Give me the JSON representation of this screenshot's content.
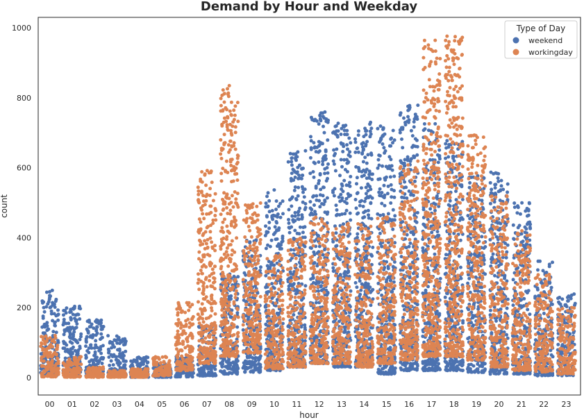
{
  "chart_data": {
    "type": "scatter",
    "title": "Demand by Hour and Weekday",
    "xlabel": "hour",
    "ylabel": "count",
    "categories": [
      "00",
      "01",
      "02",
      "03",
      "04",
      "05",
      "06",
      "07",
      "08",
      "09",
      "10",
      "11",
      "12",
      "13",
      "14",
      "15",
      "16",
      "17",
      "18",
      "19",
      "20",
      "21",
      "22",
      "23"
    ],
    "ylim": [
      -50,
      1030
    ],
    "yticks": [
      0,
      200,
      400,
      600,
      800,
      1000
    ],
    "grid": false,
    "legend": {
      "title": "Type of Day",
      "placement": "top-right"
    },
    "jitter": 0.5,
    "series": [
      {
        "name": "weekend",
        "color": "#4c72b0",
        "summary": [
          {
            "hour": "00",
            "low": 5,
            "high": 250
          },
          {
            "hour": "01",
            "low": 5,
            "high": 205
          },
          {
            "hour": "02",
            "low": 3,
            "high": 165
          },
          {
            "hour": "03",
            "low": 2,
            "high": 120
          },
          {
            "hour": "04",
            "low": 1,
            "high": 60
          },
          {
            "hour": "05",
            "low": 1,
            "high": 40
          },
          {
            "hour": "06",
            "low": 2,
            "high": 60
          },
          {
            "hour": "07",
            "low": 5,
            "high": 150
          },
          {
            "hour": "08",
            "low": 10,
            "high": 300
          },
          {
            "hour": "09",
            "low": 15,
            "high": 400
          },
          {
            "hour": "10",
            "low": 20,
            "high": 540
          },
          {
            "hour": "11",
            "low": 30,
            "high": 650
          },
          {
            "hour": "12",
            "low": 40,
            "high": 760
          },
          {
            "hour": "13",
            "low": 30,
            "high": 730
          },
          {
            "hour": "14",
            "low": 30,
            "high": 730
          },
          {
            "hour": "15",
            "low": 10,
            "high": 720
          },
          {
            "hour": "16",
            "low": 20,
            "high": 780
          },
          {
            "hour": "17",
            "low": 20,
            "high": 730
          },
          {
            "hour": "18",
            "low": 20,
            "high": 680
          },
          {
            "hour": "19",
            "low": 15,
            "high": 580
          },
          {
            "hour": "20",
            "low": 10,
            "high": 590
          },
          {
            "hour": "21",
            "low": 10,
            "high": 500
          },
          {
            "hour": "22",
            "low": 5,
            "high": 340
          },
          {
            "hour": "23",
            "low": 5,
            "high": 240
          }
        ]
      },
      {
        "name": "workingday",
        "color": "#dd8452",
        "summary": [
          {
            "hour": "00",
            "low": 2,
            "high": 120
          },
          {
            "hour": "01",
            "low": 1,
            "high": 60
          },
          {
            "hour": "02",
            "low": 1,
            "high": 30
          },
          {
            "hour": "03",
            "low": 1,
            "high": 20
          },
          {
            "hour": "04",
            "low": 1,
            "high": 25
          },
          {
            "hour": "05",
            "low": 5,
            "high": 60
          },
          {
            "hour": "06",
            "low": 20,
            "high": 220
          },
          {
            "hour": "07",
            "low": 40,
            "high": 600
          },
          {
            "hour": "08",
            "low": 60,
            "high": 840
          },
          {
            "hour": "09",
            "low": 70,
            "high": 500
          },
          {
            "hour": "10",
            "low": 25,
            "high": 350
          },
          {
            "hour": "11",
            "low": 30,
            "high": 400
          },
          {
            "hour": "12",
            "low": 40,
            "high": 460
          },
          {
            "hour": "13",
            "low": 40,
            "high": 440
          },
          {
            "hour": "14",
            "low": 30,
            "high": 440
          },
          {
            "hour": "15",
            "low": 40,
            "high": 460
          },
          {
            "hour": "16",
            "low": 50,
            "high": 620
          },
          {
            "hour": "17",
            "low": 60,
            "high": 970
          },
          {
            "hour": "18",
            "low": 60,
            "high": 980
          },
          {
            "hour": "19",
            "low": 50,
            "high": 700
          },
          {
            "hour": "20",
            "low": 30,
            "high": 520
          },
          {
            "hour": "21",
            "low": 20,
            "high": 420
          },
          {
            "hour": "22",
            "low": 15,
            "high": 300
          },
          {
            "hour": "23",
            "low": 10,
            "high": 200
          }
        ]
      }
    ]
  }
}
